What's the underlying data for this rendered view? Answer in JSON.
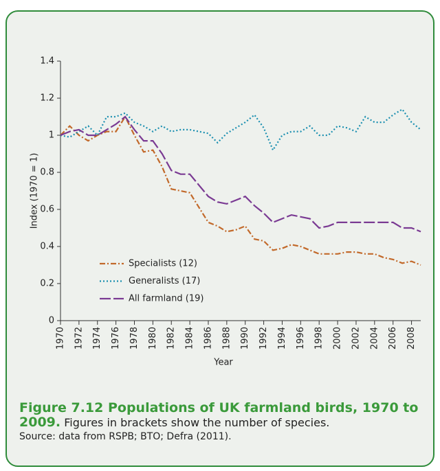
{
  "chart_data": {
    "type": "line",
    "ylabel": "Index (1970 = 1)",
    "xlabel": "Year",
    "x": [
      1970,
      1971,
      1972,
      1973,
      1974,
      1975,
      1976,
      1977,
      1978,
      1979,
      1980,
      1981,
      1982,
      1983,
      1984,
      1985,
      1986,
      1987,
      1988,
      1989,
      1990,
      1991,
      1992,
      1993,
      1994,
      1995,
      1996,
      1997,
      1998,
      1999,
      2000,
      2001,
      2002,
      2003,
      2004,
      2005,
      2006,
      2007,
      2008,
      2009
    ],
    "series": [
      {
        "name": "Specialists (12)",
        "color": "#c2692a",
        "dash": "8 3 2 3",
        "values": [
          1.0,
          1.05,
          1.0,
          0.97,
          1.0,
          1.02,
          1.02,
          1.1,
          1.0,
          0.91,
          0.92,
          0.83,
          0.71,
          0.7,
          0.69,
          0.61,
          0.53,
          0.51,
          0.48,
          0.49,
          0.51,
          0.44,
          0.43,
          0.38,
          0.39,
          0.41,
          0.4,
          0.38,
          0.36,
          0.36,
          0.36,
          0.37,
          0.37,
          0.36,
          0.36,
          0.34,
          0.33,
          0.31,
          0.32,
          0.3
        ]
      },
      {
        "name": "Generalists (17)",
        "color": "#1a8fb0",
        "dash": "2 3",
        "values": [
          1.0,
          0.99,
          1.02,
          1.05,
          1.0,
          1.1,
          1.1,
          1.12,
          1.07,
          1.05,
          1.02,
          1.05,
          1.02,
          1.03,
          1.03,
          1.02,
          1.01,
          0.96,
          1.01,
          1.04,
          1.07,
          1.11,
          1.04,
          0.92,
          1.0,
          1.02,
          1.02,
          1.05,
          1.0,
          1.0,
          1.05,
          1.04,
          1.02,
          1.1,
          1.07,
          1.07,
          1.11,
          1.14,
          1.07,
          1.03
        ]
      },
      {
        "name": "All farmland (19)",
        "color": "#7a3a93",
        "dash": "16 4",
        "values": [
          1.0,
          1.02,
          1.03,
          1.0,
          1.0,
          1.03,
          1.06,
          1.1,
          1.03,
          0.97,
          0.97,
          0.9,
          0.81,
          0.79,
          0.79,
          0.73,
          0.67,
          0.64,
          0.63,
          0.65,
          0.67,
          0.62,
          0.58,
          0.53,
          0.55,
          0.57,
          0.56,
          0.55,
          0.5,
          0.51,
          0.53,
          0.53,
          0.53,
          0.53,
          0.53,
          0.53,
          0.53,
          0.5,
          0.5,
          0.48
        ]
      }
    ],
    "xlim": [
      1970,
      2009
    ],
    "ylim": [
      0,
      1.4
    ],
    "xticks": [
      1970,
      1972,
      1974,
      1976,
      1978,
      1980,
      1982,
      1984,
      1986,
      1988,
      1990,
      1992,
      1994,
      1996,
      1998,
      2000,
      2002,
      2004,
      2006,
      2008
    ],
    "yticks": [
      0,
      0.2,
      0.4,
      0.6,
      0.8,
      1,
      1.2,
      1.4
    ],
    "legend": "lower-left"
  },
  "caption": {
    "title": "Figure 7.12 Populations of UK farmland birds, 1970 to 2009.",
    "text": "Figures in brackets show the number of species.",
    "source": "Source: data from RSPB; BTO; Defra (2011)."
  }
}
